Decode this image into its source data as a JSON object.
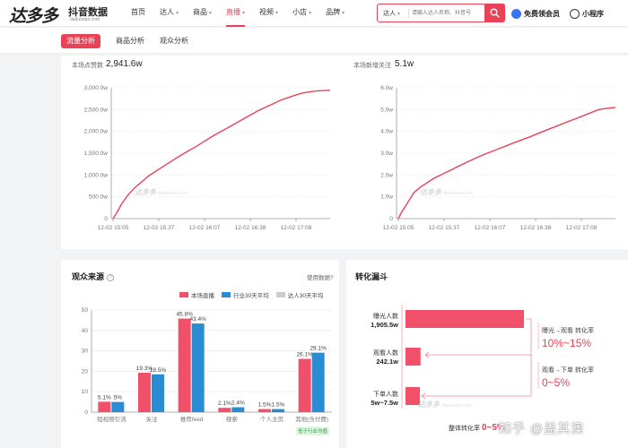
{
  "header": {
    "logo_main": "达多多",
    "logo_sub": "抖音数据",
    "logo_url": "daduoduo.com",
    "nav": [
      {
        "label": "首页",
        "caret": false,
        "active": false
      },
      {
        "label": "达人",
        "caret": true,
        "active": false
      },
      {
        "label": "商品",
        "caret": true,
        "active": false
      },
      {
        "label": "直播",
        "caret": true,
        "active": true
      },
      {
        "label": "视频",
        "caret": true,
        "active": false
      },
      {
        "label": "小店",
        "caret": true,
        "active": false
      },
      {
        "label": "品牌",
        "caret": true,
        "active": false
      }
    ],
    "search": {
      "category": "达人",
      "placeholder": "请输入达人名称、抖音号"
    },
    "vip_label": "免费领会员",
    "mini_label": "小程序"
  },
  "subtabs": [
    {
      "label": "流量分析",
      "active": true
    },
    {
      "label": "商品分析",
      "active": false
    },
    {
      "label": "观众分析",
      "active": false
    }
  ],
  "watermark": {
    "brand": "达多多",
    "url": "daduoduo.com"
  },
  "likes_chart": {
    "metric_label": "本场点赞数",
    "metric_value": "2,941.6w",
    "chart_data": {
      "type": "line",
      "x_ticks": [
        "12-02 15:05",
        "12-02 15:37",
        "12-02 16:07",
        "12-02 16:38",
        "12-02 17:08"
      ],
      "y_ticks": [
        "0",
        "500.0w",
        "1,000.0w",
        "1,500.0w",
        "2,000.0w",
        "2,500.0w",
        "3,000.0w"
      ],
      "ylim": [
        0,
        3000
      ],
      "y_unit": "w",
      "x_minutes": [
        0,
        3,
        8,
        14,
        20,
        32,
        50,
        62,
        75,
        90,
        105,
        118,
        130,
        140,
        150,
        160,
        170,
        180,
        186,
        195
      ],
      "values": [
        0,
        120,
        350,
        560,
        720,
        980,
        1280,
        1470,
        1660,
        1900,
        2110,
        2300,
        2470,
        2590,
        2710,
        2800,
        2880,
        2920,
        2935,
        2941.6
      ],
      "color": "#e94256"
    }
  },
  "followers_chart": {
    "metric_label": "本场新增关注",
    "metric_value": "5.1w",
    "chart_data": {
      "type": "line",
      "x_ticks": [
        "12-02 15:05",
        "12-02 15:37",
        "12-02 16:07",
        "12-02 16:38",
        "12-02 17:08"
      ],
      "y_ticks": [
        "0",
        "1.0w",
        "2.0w",
        "3.0w",
        "4.0w",
        "5.0w",
        "6.0w"
      ],
      "ylim": [
        0,
        6
      ],
      "y_unit": "w",
      "x_minutes": [
        0,
        3,
        8,
        14,
        20,
        32,
        50,
        62,
        75,
        90,
        105,
        118,
        130,
        140,
        150,
        160,
        170,
        180,
        186,
        195
      ],
      "values": [
        0,
        0.3,
        0.7,
        1.2,
        1.45,
        1.85,
        2.3,
        2.6,
        2.9,
        3.2,
        3.5,
        3.75,
        4.0,
        4.2,
        4.4,
        4.6,
        4.8,
        5.0,
        5.05,
        5.1
      ],
      "color": "#e94256"
    }
  },
  "audience_source": {
    "title": "观众来源",
    "help_link": "使用数据?",
    "legend": [
      {
        "label": "本场直播",
        "color": "#f0506a"
      },
      {
        "label": "行业30天平均",
        "color": "#2a8dd4"
      },
      {
        "label": "达人30天平均",
        "color": "#cccccc"
      }
    ],
    "below_badge": "低于行业均值",
    "chart_data": {
      "type": "bar",
      "categories": [
        "短视频引流",
        "关注",
        "推荐feed",
        "搜索",
        "个人主页",
        "其他(含付费)"
      ],
      "ylim": [
        0,
        50
      ],
      "y_ticks": [
        "0",
        "10",
        "20",
        "30",
        "40",
        "50"
      ],
      "series": [
        {
          "name": "本场直播",
          "values": [
            5.1,
            19.3,
            45.8,
            2.1,
            1.5,
            26.1
          ],
          "labels": [
            "5.1%",
            "19.3%",
            "45.8%",
            "2.1%",
            "1.5%",
            "26.1%"
          ],
          "color": "#f0506a"
        },
        {
          "name": "行业30天平均",
          "values": [
            5,
            18.5,
            43.4,
            2.4,
            1.5,
            29.1
          ],
          "labels": [
            "5%",
            "18.5%",
            "43.4%",
            "2.4%",
            "1.5%",
            "29.1%"
          ],
          "color": "#2a8dd4"
        }
      ]
    }
  },
  "funnel": {
    "title": "转化漏斗",
    "rows": [
      {
        "label": "曝光人数",
        "value": "1,905.5w",
        "fill": 1.0
      },
      {
        "label": "观看人数",
        "value": "242.1w",
        "fill": 0.127
      },
      {
        "label": "下单人数",
        "value": "5w~7.5w",
        "fill": 0.12
      }
    ],
    "conversions": [
      {
        "title": "曝光→观看 转化率",
        "value": "10%~15%"
      },
      {
        "title": "观看→下单 转化率",
        "value": "0~5%"
      }
    ],
    "overall_label": "整体转化率",
    "overall_value": "0~5%",
    "bar_color": "#f0506a"
  },
  "zhihu_watermark": "知乎 @盖其澳"
}
